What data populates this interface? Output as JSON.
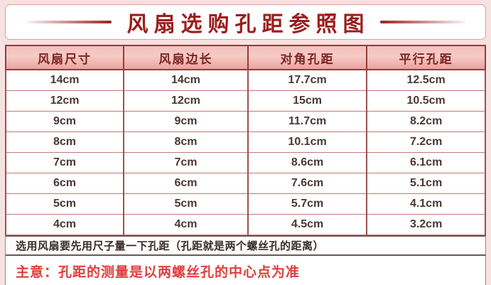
{
  "title": "风扇选购孔距参照图",
  "chart_data": {
    "type": "table",
    "title": "风扇选购孔距参照图",
    "columns": [
      "风扇尺寸",
      "风扇边长",
      "对角孔距",
      "平行孔距"
    ],
    "rows": [
      [
        "14cm",
        "14cm",
        "17.7cm",
        "12.5cm"
      ],
      [
        "12cm",
        "12cm",
        "15cm",
        "10.5cm"
      ],
      [
        "9cm",
        "9cm",
        "11.7cm",
        "8.2cm"
      ],
      [
        "8cm",
        "8cm",
        "10.1cm",
        "7.2cm"
      ],
      [
        "7cm",
        "7cm",
        "8.6cm",
        "6.1cm"
      ],
      [
        "6cm",
        "6cm",
        "7.6cm",
        "5.1cm"
      ],
      [
        "5cm",
        "5cm",
        "5.7cm",
        "4.1cm"
      ],
      [
        "4cm",
        "4cm",
        "4.5cm",
        "3.2cm"
      ]
    ],
    "notes": [
      "选用风扇要先用尺子量一下孔距（孔距就是两个螺丝孔的距离）",
      "主意：孔距的测量是以两螺丝孔的中心点为准"
    ]
  },
  "notes": {
    "measure_tip": "选用风扇要先用尺子量一下孔距（孔距就是两个螺丝孔的距离）",
    "attention": "主意：孔距的测量是以两螺丝孔的中心点为准"
  },
  "colors": {
    "page_bg": "#f6e2e1",
    "title_text": "#9c1d1d",
    "title_box_border": "#d9a3a1",
    "decor_line": "#9c2222",
    "header_bg_top": "#f4c0bc",
    "header_bg_bottom": "#eba29d",
    "header_text": "#7b2423",
    "table_outer_border": "#8f3e3c",
    "table_vertical_border": "#9a5450",
    "table_horizontal_border": "#c07a76",
    "cell_text": "#4b3737",
    "note_border": "#6e5553",
    "note_text": "#382b2b",
    "attention_text": "#e03e3e"
  }
}
